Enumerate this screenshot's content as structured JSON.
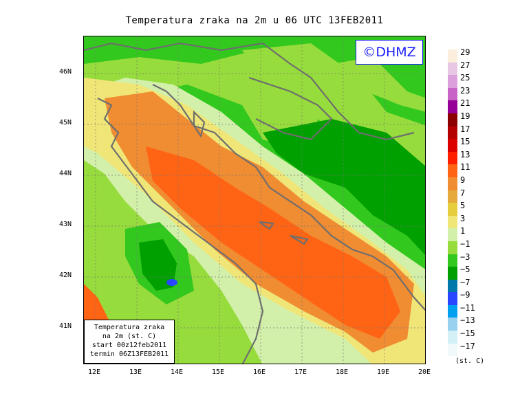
{
  "map": {
    "title": "Temperatura zraka na 2m u 06 UTC 13FEB2011",
    "watermark": "©DHMZ",
    "lat_labels": [
      "46N",
      "45N",
      "44N",
      "43N",
      "42N",
      "41N"
    ],
    "lat_values": [
      46,
      45,
      44,
      43,
      42,
      41
    ],
    "lon_labels": [
      "12E",
      "13E",
      "14E",
      "15E",
      "16E",
      "17E",
      "18E",
      "19E",
      "20E"
    ],
    "lon_values": [
      12,
      13,
      14,
      15,
      16,
      17,
      18,
      19,
      20
    ],
    "info_box": {
      "line1": "Temperatura zraka",
      "line2": "na 2m (st. C)",
      "line3": "start 00z12feb2011",
      "line4": "termin 06Z13FEB2011"
    }
  },
  "legend": {
    "unit": "(st. C)",
    "labels": [
      "29",
      "27",
      "25",
      "23",
      "21",
      "19",
      "17",
      "15",
      "13",
      "11",
      "9",
      "7",
      "5",
      "3",
      "1",
      "−1",
      "−3",
      "−5",
      "−7",
      "−9",
      "−11",
      "−13",
      "−15",
      "−17"
    ],
    "colors": [
      "#fbeedc",
      "#e6c8e4",
      "#dca0dc",
      "#c864c8",
      "#960096",
      "#8c0000",
      "#b40000",
      "#dc0000",
      "#ff1e00",
      "#ff6414",
      "#f08c32",
      "#e6aa3c",
      "#e6cd3c",
      "#f0e678",
      "#d2f0aa",
      "#96dc3c",
      "#32c81e",
      "#00a000",
      "#0078aa",
      "#2846ff",
      "#00a0f0",
      "#96d2f0",
      "#d2f0f5",
      "#f0fafa"
    ]
  }
}
